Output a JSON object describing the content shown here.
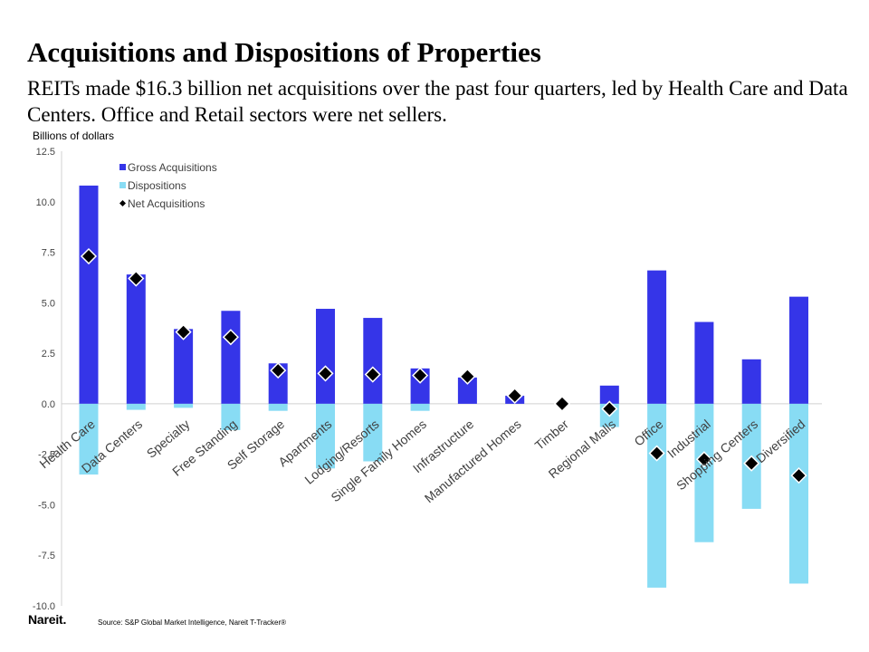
{
  "title": "Acquisitions and Dispositions of Properties",
  "subtitle": "REITs made $16.3 billion net acquisitions over the past four quarters, led by Health Care and Data Centers. Office and Retail sectors were net sellers.",
  "logo_text": "Nareit.",
  "source": "Source: S&P Global Market Intelligence, Nareit T-Tracker®",
  "colors": {
    "gross": "#3535e8",
    "dispositions": "#88dcf4",
    "net": "#000000",
    "axis": "#d0d0d0"
  },
  "chart_data": {
    "type": "bar",
    "ylabel": "Billions of dollars",
    "ylim": [
      -10,
      12.5
    ],
    "yticks": [
      "12.5",
      "10.0",
      "7.5",
      "5.0",
      "2.5",
      "0.0",
      "-2.5",
      "-5.0",
      "-7.5",
      "-10.0"
    ],
    "legend_position": "top-left",
    "grid": false,
    "categories": [
      "Health Care",
      "Data Centers",
      "Specialty",
      "Free Standing",
      "Self Storage",
      "Apartments",
      "Lodging/Resorts",
      "Single Family Homes",
      "Infrastructure",
      "Manufactured Homes",
      "Timber",
      "Regional Malls",
      "Office",
      "Industrial",
      "Shopping Centers",
      "Diversified"
    ],
    "series": [
      {
        "name": "Gross Acquisitions",
        "kind": "bar",
        "values": [
          10.8,
          6.4,
          3.7,
          4.6,
          2.0,
          4.7,
          4.25,
          1.75,
          1.3,
          0.4,
          0.0,
          0.9,
          6.6,
          4.05,
          2.2,
          5.3
        ]
      },
      {
        "name": "Dispositions",
        "kind": "bar",
        "values": [
          -3.5,
          -0.3,
          -0.2,
          -1.3,
          -0.35,
          -3.2,
          -2.85,
          -0.35,
          0.0,
          0.0,
          0.0,
          -1.15,
          -9.1,
          -6.85,
          -5.2,
          -8.9
        ]
      },
      {
        "name": "Net Acquisitions",
        "kind": "marker",
        "values": [
          7.3,
          6.2,
          3.55,
          3.3,
          1.65,
          1.5,
          1.45,
          1.4,
          1.35,
          0.4,
          0.0,
          -0.25,
          -2.45,
          -2.75,
          -2.95,
          -3.55
        ]
      }
    ]
  }
}
